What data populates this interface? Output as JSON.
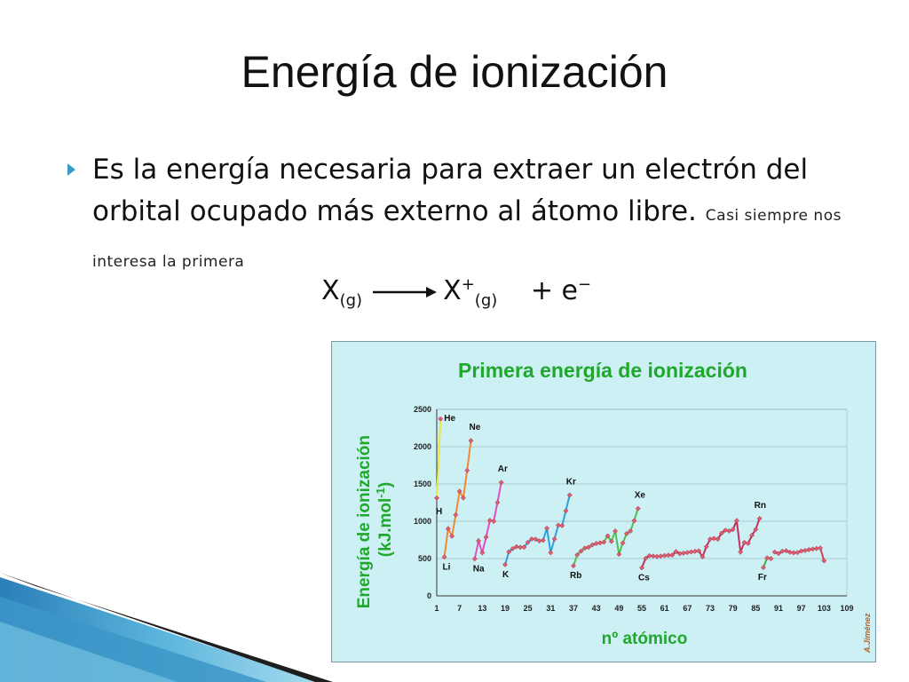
{
  "slide": {
    "title": "Energía de ionización",
    "bullet_main": "Es la energía necesaria para extraer un electrón del orbital ocupado más externo al átomo libre.",
    "bullet_note": "Casi siempre nos interesa la primera",
    "equation": {
      "reactant": "X",
      "reactant_state": "(g)",
      "product": "X",
      "product_charge": "+",
      "product_state": "(g)",
      "plus": "+ e",
      "electron_charge": "−"
    }
  },
  "chart_data": {
    "type": "line",
    "title": "Primera energía de ionización",
    "xlabel": "nº atómico",
    "ylabel": "Energía de ionización (kJ.mol",
    "ylabel_exp": "-1",
    "ylabel_close": ")",
    "ylim": [
      0,
      2500
    ],
    "xlim": [
      1,
      109
    ],
    "yticks": [
      0,
      500,
      1000,
      1500,
      2000,
      2500
    ],
    "xticks": [
      1,
      7,
      13,
      19,
      25,
      31,
      37,
      43,
      49,
      55,
      61,
      67,
      73,
      79,
      85,
      91,
      97,
      103,
      109
    ],
    "grid": true,
    "credit": "A.Jiménez",
    "series": [
      {
        "color": "#e8e840",
        "points": [
          [
            1,
            1312
          ],
          [
            2,
            2372
          ]
        ]
      },
      {
        "color": "#f08a30",
        "points": [
          [
            3,
            520
          ],
          [
            4,
            900
          ],
          [
            5,
            801
          ],
          [
            6,
            1086
          ],
          [
            7,
            1402
          ],
          [
            8,
            1314
          ],
          [
            9,
            1681
          ],
          [
            10,
            2081
          ]
        ]
      },
      {
        "color": "#e050c0",
        "points": [
          [
            11,
            496
          ],
          [
            12,
            738
          ],
          [
            13,
            578
          ],
          [
            14,
            787
          ],
          [
            15,
            1012
          ],
          [
            16,
            1000
          ],
          [
            17,
            1251
          ],
          [
            18,
            1521
          ]
        ]
      },
      {
        "color": "#30a0d8",
        "points": [
          [
            19,
            419
          ],
          [
            20,
            590
          ],
          [
            21,
            633
          ],
          [
            22,
            659
          ],
          [
            23,
            651
          ],
          [
            24,
            653
          ],
          [
            25,
            717
          ],
          [
            26,
            762
          ],
          [
            27,
            760
          ],
          [
            28,
            737
          ],
          [
            29,
            745
          ],
          [
            30,
            906
          ],
          [
            31,
            579
          ],
          [
            32,
            762
          ],
          [
            33,
            947
          ],
          [
            34,
            941
          ],
          [
            35,
            1140
          ],
          [
            36,
            1351
          ]
        ]
      },
      {
        "color": "#50c050",
        "points": [
          [
            37,
            403
          ],
          [
            38,
            550
          ],
          [
            39,
            600
          ],
          [
            40,
            640
          ],
          [
            41,
            652
          ],
          [
            42,
            684
          ],
          [
            43,
            702
          ],
          [
            44,
            710
          ],
          [
            45,
            720
          ],
          [
            46,
            804
          ],
          [
            47,
            731
          ],
          [
            48,
            868
          ],
          [
            49,
            558
          ],
          [
            50,
            709
          ],
          [
            51,
            834
          ],
          [
            52,
            869
          ],
          [
            53,
            1008
          ],
          [
            54,
            1170
          ]
        ]
      },
      {
        "color": "#c03060",
        "points": [
          [
            55,
            376
          ],
          [
            56,
            503
          ],
          [
            57,
            538
          ],
          [
            58,
            534
          ],
          [
            59,
            527
          ],
          [
            60,
            533
          ],
          [
            61,
            540
          ],
          [
            62,
            545
          ],
          [
            63,
            547
          ],
          [
            64,
            593
          ],
          [
            65,
            566
          ],
          [
            66,
            573
          ],
          [
            67,
            581
          ],
          [
            68,
            589
          ],
          [
            69,
            597
          ],
          [
            70,
            603
          ],
          [
            71,
            524
          ],
          [
            72,
            659
          ],
          [
            73,
            761
          ],
          [
            74,
            770
          ],
          [
            75,
            760
          ],
          [
            76,
            840
          ],
          [
            77,
            880
          ],
          [
            78,
            870
          ],
          [
            79,
            890
          ],
          [
            80,
            1007
          ],
          [
            81,
            589
          ],
          [
            82,
            716
          ],
          [
            83,
            703
          ],
          [
            84,
            812
          ],
          [
            85,
            890
          ],
          [
            86,
            1037
          ]
        ]
      },
      {
        "color": "#40b040",
        "points": [
          [
            87,
            380
          ],
          [
            88,
            509
          ],
          [
            89,
            499
          ]
        ]
      },
      {
        "color": "#d04050",
        "points": [
          [
            90,
            587
          ],
          [
            91,
            568
          ],
          [
            92,
            598
          ],
          [
            93,
            605
          ],
          [
            94,
            585
          ],
          [
            95,
            578
          ],
          [
            96,
            581
          ],
          [
            97,
            601
          ],
          [
            98,
            608
          ],
          [
            99,
            619
          ],
          [
            100,
            627
          ],
          [
            101,
            635
          ],
          [
            102,
            642
          ],
          [
            103,
            470
          ]
        ]
      }
    ],
    "element_labels": [
      {
        "text": "H",
        "x": 1,
        "y": 1312
      },
      {
        "text": "He",
        "x": 2,
        "y": 2372
      },
      {
        "text": "Li",
        "x": 3,
        "y": 520
      },
      {
        "text": "Ne",
        "x": 10,
        "y": 2081
      },
      {
        "text": "Na",
        "x": 11,
        "y": 496
      },
      {
        "text": "Ar",
        "x": 18,
        "y": 1521
      },
      {
        "text": "K",
        "x": 19,
        "y": 419
      },
      {
        "text": "Kr",
        "x": 36,
        "y": 1351
      },
      {
        "text": "Rb",
        "x": 37,
        "y": 403
      },
      {
        "text": "Xe",
        "x": 54,
        "y": 1170
      },
      {
        "text": "Cs",
        "x": 55,
        "y": 376
      },
      {
        "text": "Rn",
        "x": 86,
        "y": 1037
      },
      {
        "text": "Fr",
        "x": 87,
        "y": 380
      }
    ]
  }
}
